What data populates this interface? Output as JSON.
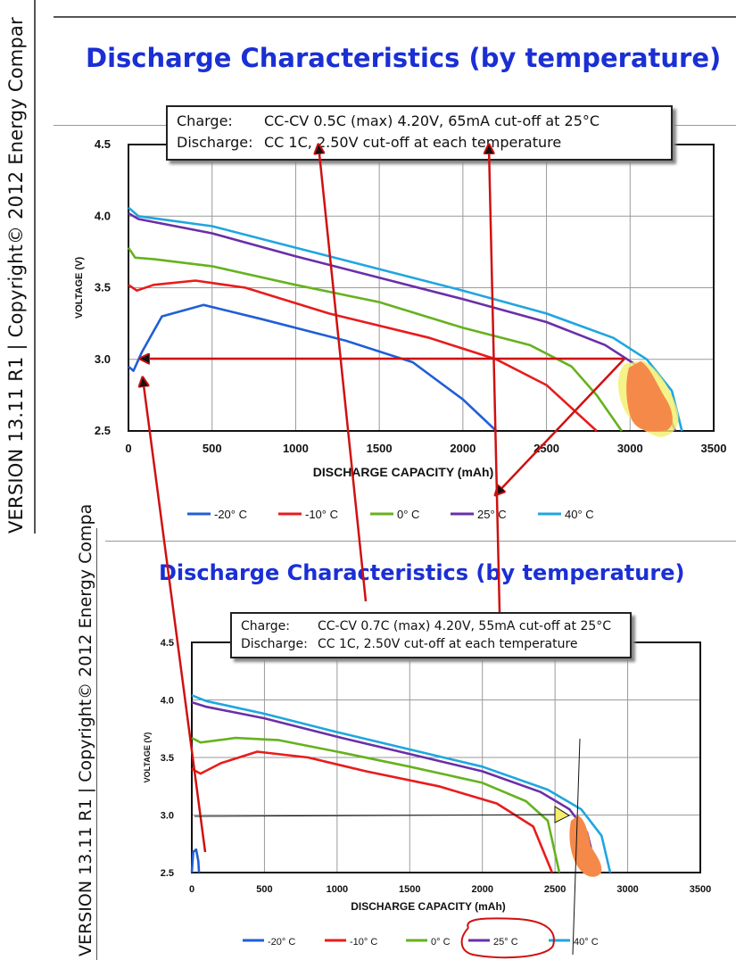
{
  "side_text": {
    "top": "VERSION 13.11 R1 | Copyright© 2012 Energy Compar",
    "bottom": "VERSION 13.11 R1 | Copyright© 2012 Energy Compa"
  },
  "charts": [
    {
      "title": "Discharge Characteristics (by temperature)",
      "box": {
        "charge_label": "Charge:",
        "charge_text": "CC-CV 0.5C (max) 4.20V, 65mA cut-off at 25°C",
        "discharge_label": "Discharge:",
        "discharge_text": "CC 1C, 2.50V cut-off at each temperature"
      }
    },
    {
      "title": "Discharge Characteristics (by temperature)",
      "box": {
        "charge_label": "Charge:",
        "charge_text": "CC-CV 0.7C (max) 4.20V, 55mA cut-off at 25°C",
        "discharge_label": "Discharge:",
        "discharge_text": "CC 1C, 2.50V cut-off at each temperature"
      }
    }
  ],
  "chart_data": [
    {
      "type": "line",
      "title": "Discharge Characteristics (by temperature)",
      "xlabel": "DISCHARGE CAPACITY (mAh)",
      "ylabel": "VOLTAGE (V)",
      "xlim": [
        0,
        3500
      ],
      "ylim": [
        2.5,
        4.5
      ],
      "xticks": [
        "0",
        "500",
        "1000",
        "1500",
        "2000",
        "2500",
        "3000",
        "3500"
      ],
      "yticks": [
        "2.5",
        "3.0",
        "3.5",
        "4.0",
        "4.5"
      ],
      "grid": true,
      "legend": "bottom",
      "series": [
        {
          "name": "-20° C",
          "color": "#1f5fd6",
          "points": [
            [
              0,
              2.95
            ],
            [
              30,
              2.92
            ],
            [
              80,
              3.05
            ],
            [
              200,
              3.3
            ],
            [
              450,
              3.38
            ],
            [
              800,
              3.28
            ],
            [
              1300,
              3.13
            ],
            [
              1700,
              2.98
            ],
            [
              2000,
              2.72
            ],
            [
              2200,
              2.5
            ]
          ]
        },
        {
          "name": "-10° C",
          "color": "#e81c1c",
          "points": [
            [
              0,
              3.52
            ],
            [
              50,
              3.48
            ],
            [
              150,
              3.52
            ],
            [
              400,
              3.55
            ],
            [
              700,
              3.5
            ],
            [
              1200,
              3.32
            ],
            [
              1800,
              3.15
            ],
            [
              2200,
              3.0
            ],
            [
              2500,
              2.82
            ],
            [
              2800,
              2.5
            ]
          ]
        },
        {
          "name": "0° C",
          "color": "#66b21e",
          "points": [
            [
              0,
              3.78
            ],
            [
              40,
              3.71
            ],
            [
              150,
              3.7
            ],
            [
              500,
              3.65
            ],
            [
              1000,
              3.52
            ],
            [
              1500,
              3.4
            ],
            [
              2000,
              3.22
            ],
            [
              2400,
              3.1
            ],
            [
              2650,
              2.95
            ],
            [
              2800,
              2.75
            ],
            [
              2950,
              2.5
            ]
          ]
        },
        {
          "name": "25° C",
          "color": "#6a2fa8",
          "points": [
            [
              0,
              4.02
            ],
            [
              60,
              3.98
            ],
            [
              500,
              3.88
            ],
            [
              1000,
              3.72
            ],
            [
              1500,
              3.57
            ],
            [
              2000,
              3.42
            ],
            [
              2500,
              3.26
            ],
            [
              2850,
              3.1
            ],
            [
              3050,
              2.95
            ],
            [
              3200,
              2.7
            ],
            [
              3270,
              2.5
            ]
          ]
        },
        {
          "name": "40° C",
          "color": "#1fa6e0",
          "points": [
            [
              0,
              4.06
            ],
            [
              60,
              4.0
            ],
            [
              500,
              3.93
            ],
            [
              1000,
              3.78
            ],
            [
              1500,
              3.63
            ],
            [
              2000,
              3.48
            ],
            [
              2500,
              3.32
            ],
            [
              2900,
              3.15
            ],
            [
              3100,
              3.0
            ],
            [
              3250,
              2.78
            ],
            [
              3310,
              2.5
            ]
          ]
        }
      ]
    },
    {
      "type": "line",
      "title": "Discharge Characteristics (by temperature)",
      "xlabel": "DISCHARGE CAPACITY (mAh)",
      "ylabel": "VOLTAGE (V)",
      "xlim": [
        0,
        3500
      ],
      "ylim": [
        2.5,
        4.5
      ],
      "xticks": [
        "0",
        "500",
        "1000",
        "1500",
        "2000",
        "2500",
        "3000",
        "3500"
      ],
      "yticks": [
        "2.5",
        "3.0",
        "3.5",
        "4.0",
        "4.5"
      ],
      "grid": true,
      "legend": "bottom",
      "series": [
        {
          "name": "-20° C",
          "color": "#1f5fd6",
          "points": [
            [
              0,
              2.5
            ],
            [
              10,
              2.68
            ],
            [
              30,
              2.7
            ],
            [
              45,
              2.6
            ],
            [
              50,
              2.5
            ]
          ]
        },
        {
          "name": "-10° C",
          "color": "#e81c1c",
          "points": [
            [
              0,
              3.4
            ],
            [
              60,
              3.36
            ],
            [
              200,
              3.45
            ],
            [
              450,
              3.55
            ],
            [
              800,
              3.5
            ],
            [
              1200,
              3.38
            ],
            [
              1700,
              3.25
            ],
            [
              2100,
              3.1
            ],
            [
              2350,
              2.9
            ],
            [
              2480,
              2.5
            ]
          ]
        },
        {
          "name": "0° C",
          "color": "#66b21e",
          "points": [
            [
              0,
              3.67
            ],
            [
              60,
              3.63
            ],
            [
              300,
              3.67
            ],
            [
              600,
              3.65
            ],
            [
              1000,
              3.55
            ],
            [
              1500,
              3.42
            ],
            [
              2000,
              3.28
            ],
            [
              2300,
              3.12
            ],
            [
              2450,
              2.95
            ],
            [
              2530,
              2.5
            ]
          ]
        },
        {
          "name": "25° C",
          "color": "#6a2fa8",
          "points": [
            [
              0,
              3.98
            ],
            [
              100,
              3.94
            ],
            [
              500,
              3.84
            ],
            [
              1000,
              3.68
            ],
            [
              1500,
              3.53
            ],
            [
              2000,
              3.38
            ],
            [
              2400,
              3.2
            ],
            [
              2600,
              3.05
            ],
            [
              2720,
              2.85
            ],
            [
              2790,
              2.5
            ]
          ]
        },
        {
          "name": "40° C",
          "color": "#1fa6e0",
          "points": [
            [
              0,
              4.04
            ],
            [
              100,
              3.99
            ],
            [
              500,
              3.88
            ],
            [
              1000,
              3.72
            ],
            [
              1500,
              3.57
            ],
            [
              2000,
              3.42
            ],
            [
              2450,
              3.22
            ],
            [
              2680,
              3.05
            ],
            [
              2820,
              2.82
            ],
            [
              2880,
              2.5
            ]
          ]
        }
      ]
    }
  ]
}
